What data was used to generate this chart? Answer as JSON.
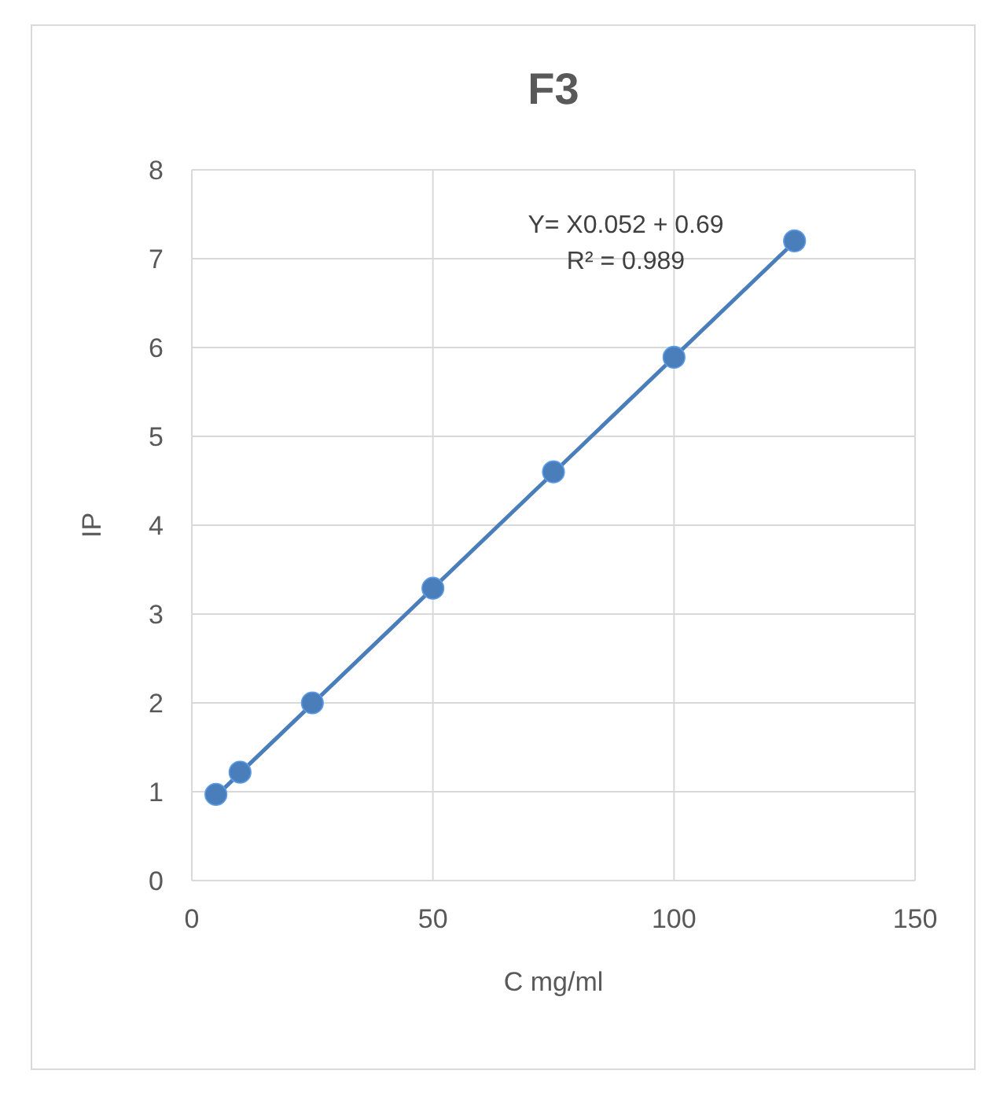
{
  "chart_data": {
    "type": "scatter",
    "title": "F3",
    "xlabel": "C mg/ml",
    "ylabel": "IP",
    "xlim": [
      0,
      150
    ],
    "xticks": [
      0,
      50,
      100,
      150
    ],
    "ylim": [
      0,
      8
    ],
    "yticks": [
      0,
      1,
      2,
      3,
      4,
      5,
      6,
      7,
      8
    ],
    "grid": true,
    "series": [
      {
        "color": "#4a7ebb",
        "marker": "circle",
        "x": [
          5,
          10,
          25,
          50,
          75,
          100,
          125
        ],
        "values": [
          0.97,
          1.22,
          2.0,
          3.29,
          4.6,
          5.89,
          7.2
        ]
      },
      {
        "type": "line",
        "color": "#4a7ebb",
        "x": [
          5,
          125
        ],
        "values": [
          0.95,
          7.19
        ],
        "line_style": "solid"
      }
    ],
    "annotations": [
      "Y= X0.052 + 0.69",
      "R² = 0.989"
    ]
  }
}
